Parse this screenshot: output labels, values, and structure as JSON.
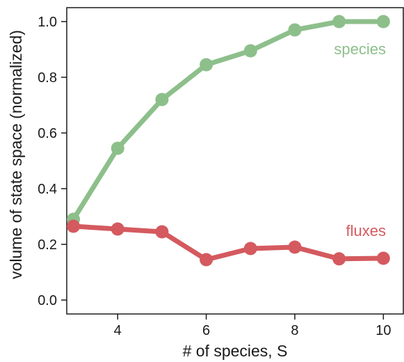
{
  "chart_data": {
    "type": "line",
    "title": "",
    "xlabel": "# of species, S",
    "ylabel": "volume of state space (normalized)",
    "xlim": [
      2.85,
      10.45
    ],
    "ylim": [
      -0.05,
      1.05
    ],
    "xticks": [
      4,
      6,
      8,
      10
    ],
    "yticks": [
      0.0,
      0.2,
      0.4,
      0.6,
      0.8,
      1.0
    ],
    "ytick_labels": [
      "0.0",
      "0.2",
      "0.4",
      "0.6",
      "0.8",
      "1.0"
    ],
    "grid": false,
    "legend": "inline labels",
    "x": [
      3,
      4,
      5,
      6,
      7,
      8,
      9,
      10
    ],
    "series": [
      {
        "name": "species",
        "color": "#8dbf8b",
        "values": [
          0.29,
          0.545,
          0.72,
          0.845,
          0.895,
          0.97,
          1.0,
          1.0
        ]
      },
      {
        "name": "fluxes",
        "color": "#d45a5f",
        "values": [
          0.265,
          0.255,
          0.245,
          0.145,
          0.185,
          0.19,
          0.148,
          0.15
        ]
      }
    ]
  }
}
